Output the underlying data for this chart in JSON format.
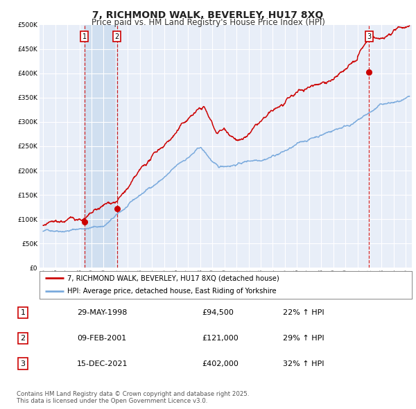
{
  "title": "7, RICHMOND WALK, BEVERLEY, HU17 8XQ",
  "subtitle": "Price paid vs. HM Land Registry's House Price Index (HPI)",
  "title_fontsize": 10,
  "subtitle_fontsize": 8.5,
  "bg_color": "#ffffff",
  "plot_bg_color": "#e8eef8",
  "grid_color": "#ffffff",
  "ylim": [
    0,
    500000
  ],
  "yticks": [
    0,
    50000,
    100000,
    150000,
    200000,
    250000,
    300000,
    350000,
    400000,
    450000,
    500000
  ],
  "ytick_labels": [
    "£0",
    "£50K",
    "£100K",
    "£150K",
    "£200K",
    "£250K",
    "£300K",
    "£350K",
    "£400K",
    "£450K",
    "£500K"
  ],
  "xlim_start": 1994.7,
  "xlim_end": 2025.5,
  "xticks": [
    1995,
    1996,
    1997,
    1998,
    1999,
    2000,
    2001,
    2002,
    2003,
    2004,
    2005,
    2006,
    2007,
    2008,
    2009,
    2010,
    2011,
    2012,
    2013,
    2014,
    2015,
    2016,
    2017,
    2018,
    2019,
    2020,
    2021,
    2022,
    2023,
    2024,
    2025
  ],
  "red_line_color": "#cc0000",
  "blue_line_color": "#7aaadd",
  "sale1_date": 1998.41,
  "sale1_price": 94500,
  "sale1_label": "1",
  "sale2_date": 2001.11,
  "sale2_price": 121000,
  "sale2_label": "2",
  "sale3_date": 2021.96,
  "sale3_price": 402000,
  "sale3_label": "3",
  "vline_color": "#cc0000",
  "shade_color": "#d0dff0",
  "legend_line1": "7, RICHMOND WALK, BEVERLEY, HU17 8XQ (detached house)",
  "legend_line2": "HPI: Average price, detached house, East Riding of Yorkshire",
  "table_data": [
    [
      "1",
      "29-MAY-1998",
      "£94,500",
      "22% ↑ HPI"
    ],
    [
      "2",
      "09-FEB-2001",
      "£121,000",
      "29% ↑ HPI"
    ],
    [
      "3",
      "15-DEC-2021",
      "£402,000",
      "32% ↑ HPI"
    ]
  ],
  "footer": "Contains HM Land Registry data © Crown copyright and database right 2025.\nThis data is licensed under the Open Government Licence v3.0."
}
